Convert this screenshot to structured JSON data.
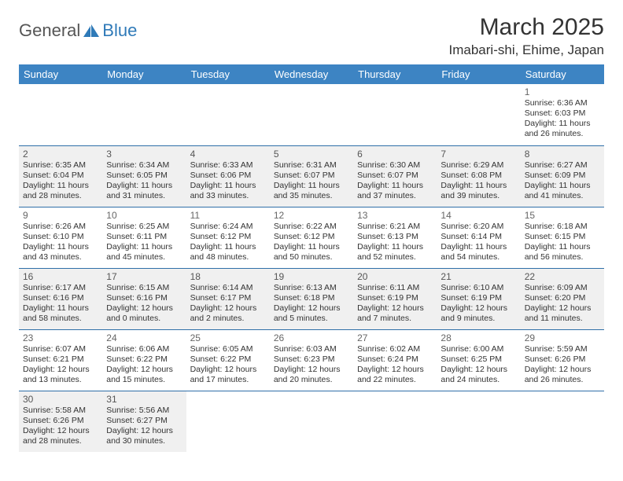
{
  "logo": {
    "part1": "General",
    "part2": "Blue",
    "sail_color": "#2f7ab8"
  },
  "title": "March 2025",
  "location": "Imabari-shi, Ehime, Japan",
  "colors": {
    "header_bg": "#3d84c3",
    "header_text": "#ffffff",
    "row_alt_bg": "#f0f0f0",
    "border": "#2f6fa8"
  },
  "day_headers": [
    "Sunday",
    "Monday",
    "Tuesday",
    "Wednesday",
    "Thursday",
    "Friday",
    "Saturday"
  ],
  "weeks": [
    {
      "alt": false,
      "days": [
        null,
        null,
        null,
        null,
        null,
        null,
        {
          "n": "1",
          "sr": "6:36 AM",
          "ss": "6:03 PM",
          "dl": "11 hours and 26 minutes."
        }
      ]
    },
    {
      "alt": true,
      "days": [
        {
          "n": "2",
          "sr": "6:35 AM",
          "ss": "6:04 PM",
          "dl": "11 hours and 28 minutes."
        },
        {
          "n": "3",
          "sr": "6:34 AM",
          "ss": "6:05 PM",
          "dl": "11 hours and 31 minutes."
        },
        {
          "n": "4",
          "sr": "6:33 AM",
          "ss": "6:06 PM",
          "dl": "11 hours and 33 minutes."
        },
        {
          "n": "5",
          "sr": "6:31 AM",
          "ss": "6:07 PM",
          "dl": "11 hours and 35 minutes."
        },
        {
          "n": "6",
          "sr": "6:30 AM",
          "ss": "6:07 PM",
          "dl": "11 hours and 37 minutes."
        },
        {
          "n": "7",
          "sr": "6:29 AM",
          "ss": "6:08 PM",
          "dl": "11 hours and 39 minutes."
        },
        {
          "n": "8",
          "sr": "6:27 AM",
          "ss": "6:09 PM",
          "dl": "11 hours and 41 minutes."
        }
      ]
    },
    {
      "alt": false,
      "days": [
        {
          "n": "9",
          "sr": "6:26 AM",
          "ss": "6:10 PM",
          "dl": "11 hours and 43 minutes."
        },
        {
          "n": "10",
          "sr": "6:25 AM",
          "ss": "6:11 PM",
          "dl": "11 hours and 45 minutes."
        },
        {
          "n": "11",
          "sr": "6:24 AM",
          "ss": "6:12 PM",
          "dl": "11 hours and 48 minutes."
        },
        {
          "n": "12",
          "sr": "6:22 AM",
          "ss": "6:12 PM",
          "dl": "11 hours and 50 minutes."
        },
        {
          "n": "13",
          "sr": "6:21 AM",
          "ss": "6:13 PM",
          "dl": "11 hours and 52 minutes."
        },
        {
          "n": "14",
          "sr": "6:20 AM",
          "ss": "6:14 PM",
          "dl": "11 hours and 54 minutes."
        },
        {
          "n": "15",
          "sr": "6:18 AM",
          "ss": "6:15 PM",
          "dl": "11 hours and 56 minutes."
        }
      ]
    },
    {
      "alt": true,
      "days": [
        {
          "n": "16",
          "sr": "6:17 AM",
          "ss": "6:16 PM",
          "dl": "11 hours and 58 minutes."
        },
        {
          "n": "17",
          "sr": "6:15 AM",
          "ss": "6:16 PM",
          "dl": "12 hours and 0 minutes."
        },
        {
          "n": "18",
          "sr": "6:14 AM",
          "ss": "6:17 PM",
          "dl": "12 hours and 2 minutes."
        },
        {
          "n": "19",
          "sr": "6:13 AM",
          "ss": "6:18 PM",
          "dl": "12 hours and 5 minutes."
        },
        {
          "n": "20",
          "sr": "6:11 AM",
          "ss": "6:19 PM",
          "dl": "12 hours and 7 minutes."
        },
        {
          "n": "21",
          "sr": "6:10 AM",
          "ss": "6:19 PM",
          "dl": "12 hours and 9 minutes."
        },
        {
          "n": "22",
          "sr": "6:09 AM",
          "ss": "6:20 PM",
          "dl": "12 hours and 11 minutes."
        }
      ]
    },
    {
      "alt": false,
      "days": [
        {
          "n": "23",
          "sr": "6:07 AM",
          "ss": "6:21 PM",
          "dl": "12 hours and 13 minutes."
        },
        {
          "n": "24",
          "sr": "6:06 AM",
          "ss": "6:22 PM",
          "dl": "12 hours and 15 minutes."
        },
        {
          "n": "25",
          "sr": "6:05 AM",
          "ss": "6:22 PM",
          "dl": "12 hours and 17 minutes."
        },
        {
          "n": "26",
          "sr": "6:03 AM",
          "ss": "6:23 PM",
          "dl": "12 hours and 20 minutes."
        },
        {
          "n": "27",
          "sr": "6:02 AM",
          "ss": "6:24 PM",
          "dl": "12 hours and 22 minutes."
        },
        {
          "n": "28",
          "sr": "6:00 AM",
          "ss": "6:25 PM",
          "dl": "12 hours and 24 minutes."
        },
        {
          "n": "29",
          "sr": "5:59 AM",
          "ss": "6:26 PM",
          "dl": "12 hours and 26 minutes."
        }
      ]
    },
    {
      "alt": true,
      "days": [
        {
          "n": "30",
          "sr": "5:58 AM",
          "ss": "6:26 PM",
          "dl": "12 hours and 28 minutes."
        },
        {
          "n": "31",
          "sr": "5:56 AM",
          "ss": "6:27 PM",
          "dl": "12 hours and 30 minutes."
        },
        null,
        null,
        null,
        null,
        null
      ]
    }
  ],
  "labels": {
    "sunrise": "Sunrise:",
    "sunset": "Sunset:",
    "daylight": "Daylight:"
  }
}
